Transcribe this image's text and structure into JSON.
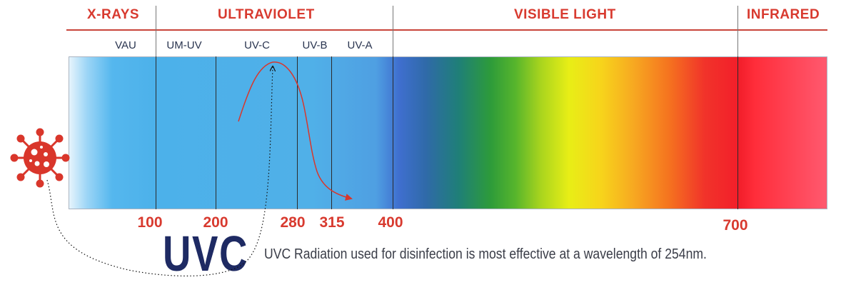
{
  "categories": {
    "xrays": "X-RAYS",
    "ultraviolet": "ULTRAVIOLET",
    "visible": "VISIBLE LIGHT",
    "infrared": "INFRARED"
  },
  "subbands": {
    "vau": "VAU",
    "umuv": "UM-UV",
    "uvc": "UV-C",
    "uvb": "UV-B",
    "uva": "UV-A"
  },
  "ticks": {
    "t100": "100",
    "t200": "200",
    "t280": "280",
    "t315": "315",
    "t400": "400",
    "t700": "700"
  },
  "brand": {
    "uvc_title": "UVC"
  },
  "caption": "UVC Radiation used for disinfection is most effective at a wavelength of 254nm.",
  "colors": {
    "category_red": "#d83a2f",
    "uv_blue": "#4cb1ea",
    "title_navy": "#1e2a63",
    "virus_red": "#d9362b"
  },
  "icons": {
    "virus": "virus-icon"
  }
}
